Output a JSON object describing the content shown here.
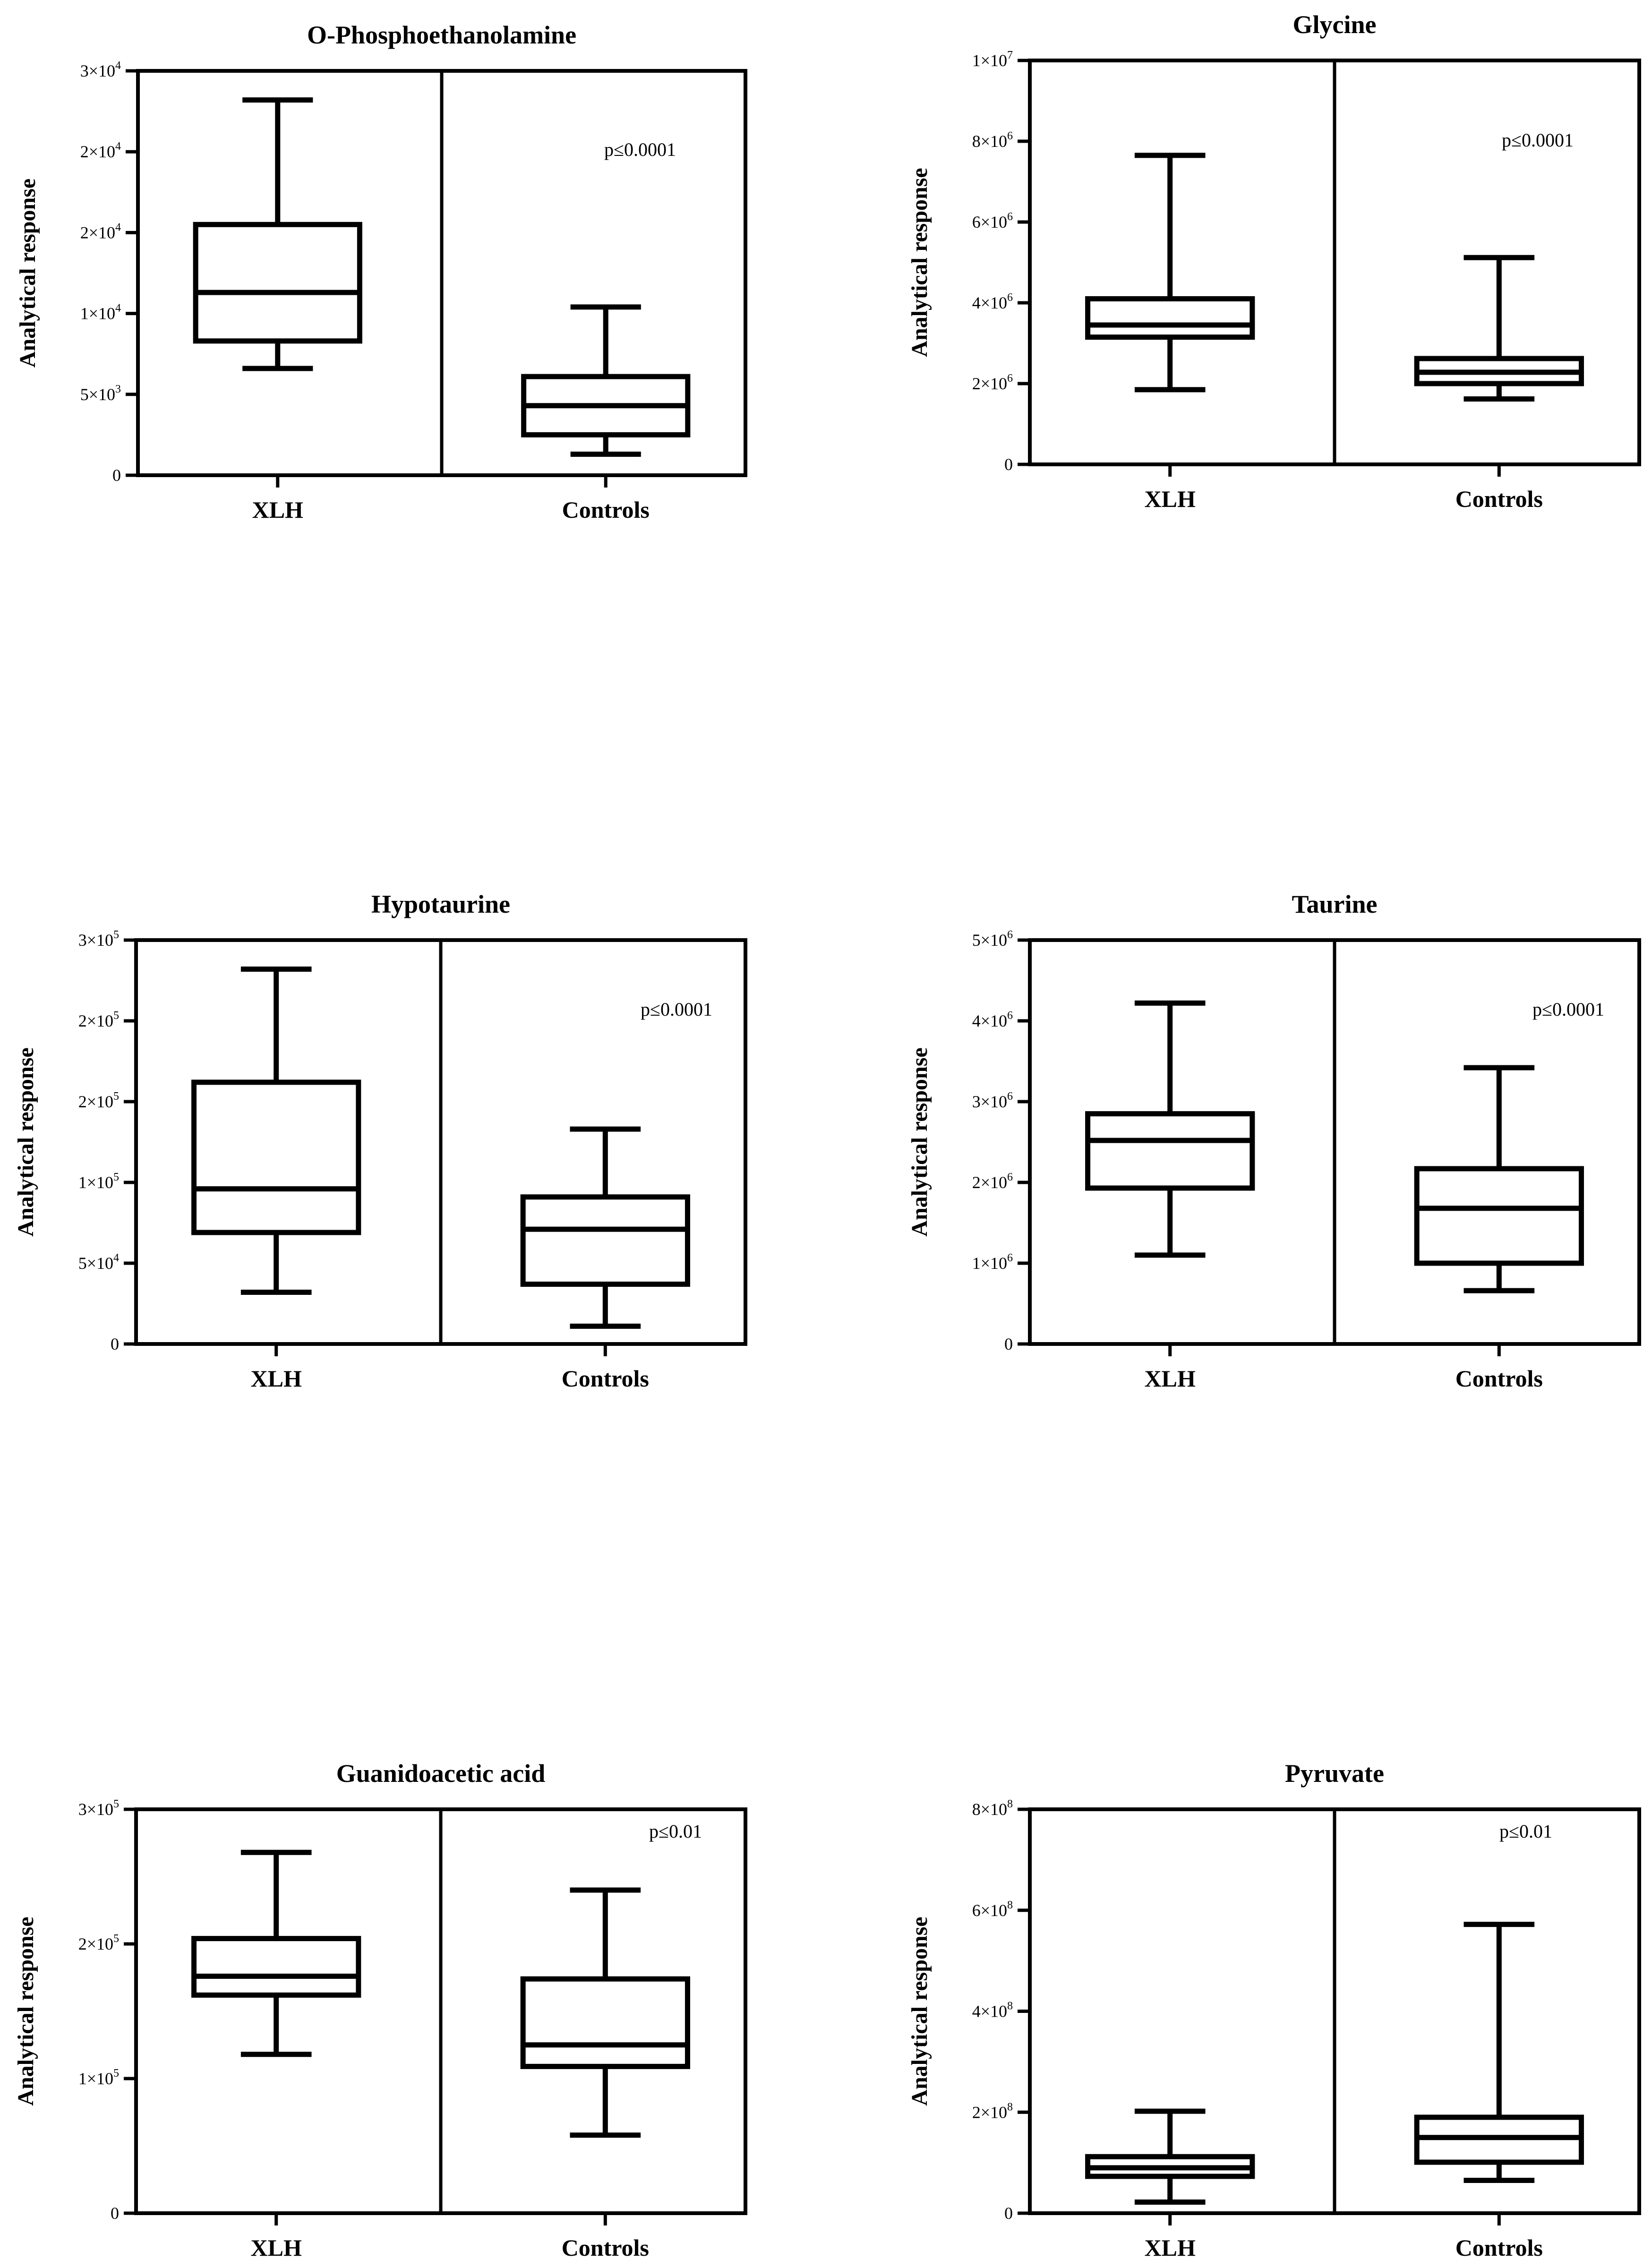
{
  "chart_data": [
    {
      "type": "box",
      "title": "O-Phosphoethanolamine",
      "ylabel": "Analytical response",
      "categories": [
        "XLH",
        "Controls"
      ],
      "ylim": [
        0,
        25000
      ],
      "yticks": [
        0,
        5000,
        10000,
        15000,
        20000,
        25000
      ],
      "ytick_labels": [
        {
          "text": "0",
          "exp": ""
        },
        {
          "text": "5×10",
          "exp": "3"
        },
        {
          "text": "1×10",
          "exp": "4"
        },
        {
          "text": "2×10",
          "exp": "4"
        },
        {
          "text": "2×10",
          "exp": "4"
        },
        {
          "text": "3×10",
          "exp": "4"
        }
      ],
      "annotation": "p≤0.0001",
      "boxes": [
        {
          "min": 6600,
          "q1": 8300,
          "median": 11300,
          "q3": 15500,
          "max": 23200
        },
        {
          "min": 1300,
          "q1": 2500,
          "median": 4300,
          "q3": 6100,
          "max": 10400
        }
      ]
    },
    {
      "type": "box",
      "title": "Glycine",
      "ylabel": "Analytical response",
      "categories": [
        "XLH",
        "Controls"
      ],
      "ylim": [
        0,
        10000000
      ],
      "yticks": [
        0,
        2000000,
        4000000,
        6000000,
        8000000,
        10000000
      ],
      "ytick_labels": [
        {
          "text": "0",
          "exp": ""
        },
        {
          "text": "2×10",
          "exp": "6"
        },
        {
          "text": "4×10",
          "exp": "6"
        },
        {
          "text": "6×10",
          "exp": "6"
        },
        {
          "text": "8×10",
          "exp": "6"
        },
        {
          "text": "1×10",
          "exp": "7"
        }
      ],
      "annotation": "p≤0.0001",
      "boxes": [
        {
          "min": 1850000,
          "q1": 3150000,
          "median": 3450000,
          "q3": 4100000,
          "max": 7650000
        },
        {
          "min": 1620000,
          "q1": 2000000,
          "median": 2280000,
          "q3": 2620000,
          "max": 5120000
        }
      ]
    },
    {
      "type": "box",
      "title": "Hypotaurine",
      "ylabel": "Analytical response",
      "categories": [
        "XLH",
        "Controls"
      ],
      "ylim": [
        0,
        250000
      ],
      "yticks": [
        0,
        50000,
        100000,
        150000,
        200000,
        250000
      ],
      "ytick_labels": [
        {
          "text": "0",
          "exp": ""
        },
        {
          "text": "5×10",
          "exp": "4"
        },
        {
          "text": "1×10",
          "exp": "5"
        },
        {
          "text": "2×10",
          "exp": "5"
        },
        {
          "text": "2×10",
          "exp": "5"
        },
        {
          "text": "3×10",
          "exp": "5"
        }
      ],
      "annotation": "p≤0.0001",
      "boxes": [
        {
          "min": 32000,
          "q1": 69000,
          "median": 96000,
          "q3": 162000,
          "max": 232000
        },
        {
          "min": 11000,
          "q1": 37000,
          "median": 71000,
          "q3": 91000,
          "max": 133000
        }
      ]
    },
    {
      "type": "box",
      "title": "Taurine",
      "ylabel": "Analytical response",
      "categories": [
        "XLH",
        "Controls"
      ],
      "ylim": [
        0,
        5000000
      ],
      "yticks": [
        0,
        1000000,
        2000000,
        3000000,
        4000000,
        5000000
      ],
      "ytick_labels": [
        {
          "text": "0",
          "exp": ""
        },
        {
          "text": "1×10",
          "exp": "6"
        },
        {
          "text": "2×10",
          "exp": "6"
        },
        {
          "text": "3×10",
          "exp": "6"
        },
        {
          "text": "4×10",
          "exp": "6"
        },
        {
          "text": "5×10",
          "exp": "6"
        }
      ],
      "annotation": "p≤0.0001",
      "boxes": [
        {
          "min": 1100000,
          "q1": 1930000,
          "median": 2520000,
          "q3": 2850000,
          "max": 4220000
        },
        {
          "min": 660000,
          "q1": 1000000,
          "median": 1680000,
          "q3": 2170000,
          "max": 3420000
        }
      ]
    },
    {
      "type": "box",
      "title": "Guanidoacetic acid",
      "ylabel": "Analytical response",
      "categories": [
        "XLH",
        "Controls"
      ],
      "ylim": [
        0,
        300000
      ],
      "yticks": [
        0,
        100000,
        200000,
        300000
      ],
      "ytick_labels": [
        {
          "text": "0",
          "exp": ""
        },
        {
          "text": "1×10",
          "exp": "5"
        },
        {
          "text": "2×10",
          "exp": "5"
        },
        {
          "text": "3×10",
          "exp": "5"
        }
      ],
      "annotation": "p≤0.01",
      "boxes": [
        {
          "min": 118000,
          "q1": 162000,
          "median": 176000,
          "q3": 204000,
          "max": 268000
        },
        {
          "min": 58000,
          "q1": 109000,
          "median": 125000,
          "q3": 174000,
          "max": 240000
        }
      ]
    },
    {
      "type": "box",
      "title": "Pyruvate",
      "ylabel": "Analytical response",
      "categories": [
        "XLH",
        "Controls"
      ],
      "ylim": [
        0,
        800000000
      ],
      "yticks": [
        0,
        200000000,
        400000000,
        600000000,
        800000000
      ],
      "ytick_labels": [
        {
          "text": "0",
          "exp": ""
        },
        {
          "text": "2×10",
          "exp": "8"
        },
        {
          "text": "4×10",
          "exp": "8"
        },
        {
          "text": "6×10",
          "exp": "8"
        },
        {
          "text": "8×10",
          "exp": "8"
        }
      ],
      "annotation": "p≤0.01",
      "boxes": [
        {
          "min": 22000000,
          "q1": 73000000,
          "median": 90000000,
          "q3": 112000000,
          "max": 202000000
        },
        {
          "min": 65000000,
          "q1": 101000000,
          "median": 150000000,
          "q3": 190000000,
          "max": 572000000
        }
      ]
    }
  ]
}
